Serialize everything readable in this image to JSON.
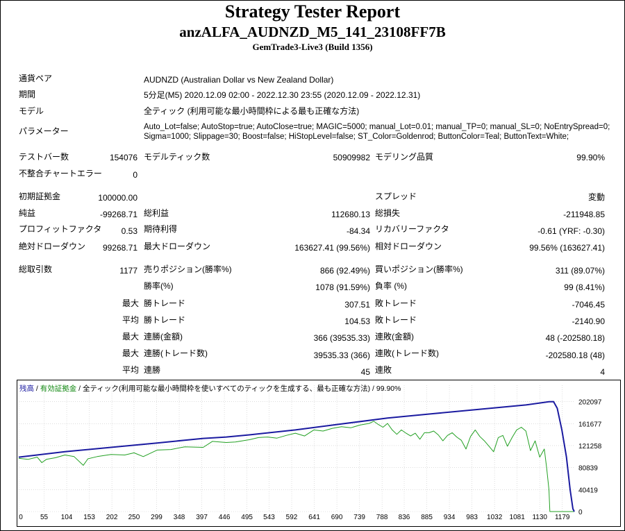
{
  "report": {
    "title": "Strategy Tester Report",
    "expert": "anzALFA_AUDNZD_M5_141_23108FF7B",
    "server": "GemTrade3-Live3 (Build 1356)"
  },
  "info": {
    "symbol_label": "通貨ペア",
    "symbol_value": "AUDNZD (Australian Dollar vs New Zealand Dollar)",
    "period_label": "期間",
    "period_value": "5分足(M5) 2020.12.09 02:00 - 2022.12.30 23:55 (2020.12.09 - 2022.12.31)",
    "model_label": "モデル",
    "model_value": "全ティック (利用可能な最小時間枠による最も正確な方法)",
    "params_label": "パラメーター",
    "params_line1": "Auto_Lot=false; AutoStop=true; AutoClose=true; MAGIC=5000; manual_Lot=0.01; manual_TP=0; manual_SL=0; NoEntrySpread=0;",
    "params_line2": "Sigma=1000; Slippage=30; Boost=false; HiStopLevel=false; ST_Color=Goldenrod; ButtonColor=Teal; ButtonText=White;"
  },
  "stats": {
    "bars_label": "テストバー数",
    "bars_value": "154076",
    "ticks_label": "モデルティック数",
    "ticks_value": "50909982",
    "quality_label": "モデリング品質",
    "quality_value": "99.90%",
    "mismatch_label": "不整合チャートエラー",
    "mismatch_value": "0",
    "deposit_label": "初期証拠金",
    "deposit_value": "100000.00",
    "spread_label": "スプレッド",
    "spread_value": "変動",
    "net_label": "純益",
    "net_value": "-99268.71",
    "gross_profit_label": "総利益",
    "gross_profit_value": "112680.13",
    "gross_loss_label": "総損失",
    "gross_loss_value": "-211948.85",
    "pf_label": "プロフィットファクタ",
    "pf_value": "0.53",
    "payoff_label": "期待利得",
    "payoff_value": "-84.34",
    "recovery_label": "リカバリーファクタ",
    "recovery_value": "-0.61 (YRF: -0.30)",
    "abs_dd_label": "絶対ドローダウン",
    "abs_dd_value": "99268.71",
    "max_dd_label": "最大ドローダウン",
    "max_dd_value": "163627.41 (99.56%)",
    "rel_dd_label": "相対ドローダウン",
    "rel_dd_value": "99.56% (163627.41)",
    "trades_label": "総取引数",
    "trades_value": "1177",
    "short_label": "売りポジション(勝率%)",
    "short_value": "866 (92.49%)",
    "long_label": "買いポジション(勝率%)",
    "long_value": "311 (89.07%)",
    "win_rate_label": "勝率(%)",
    "win_rate_value": "1078 (91.59%)",
    "loss_rate_label": "負率 (%)",
    "loss_rate_value": "99 (8.41%)",
    "max_prefix": "最大",
    "avg_prefix": "平均",
    "largest_win_label": "勝トレード",
    "largest_win_value": "307.51",
    "largest_loss_label": "敗トレード",
    "largest_loss_value": "-7046.45",
    "avg_win_label": "勝トレード",
    "avg_win_value": "104.53",
    "avg_loss_label": "敗トレード",
    "avg_loss_value": "-2140.90",
    "max_consec_wins_label": "連勝(金額)",
    "max_consec_wins_value": "366 (39535.33)",
    "max_consec_losses_label": "連敗(金額)",
    "max_consec_losses_value": "48 (-202580.18)",
    "max_consec_profit_label": "連勝(トレード数)",
    "max_consec_profit_value": "39535.33 (366)",
    "max_consec_loss_label": "連敗(トレード数)",
    "max_consec_loss_value": "-202580.18 (48)",
    "avg_consec_wins_label": "連勝",
    "avg_consec_wins_value": "45",
    "avg_consec_losses_label": "連敗",
    "avg_consec_losses_value": "4"
  },
  "chart_legend": {
    "balance": "残高",
    "sep1": " / ",
    "equity": "有効証拠金",
    "sep2": " / ",
    "rest": "全ティック(利用可能な最小時間枠を使いすべてのティックを生成する、最も正確な方法) / 99.90%"
  },
  "colors": {
    "balance": "#1a1aa0",
    "equity": "#22a022",
    "grid": "#c8c8c8"
  },
  "chart_data": {
    "type": "line",
    "x_ticks": [
      "0",
      "55",
      "104",
      "153",
      "202",
      "250",
      "299",
      "348",
      "397",
      "446",
      "495",
      "543",
      "592",
      "641",
      "690",
      "739",
      "788",
      "836",
      "885",
      "934",
      "983",
      "1032",
      "1081",
      "1130",
      "1179"
    ],
    "y_ticks": [
      "202097",
      "161677",
      "121258",
      "80839",
      "40419",
      "0"
    ],
    "ylim": [
      0,
      222000
    ],
    "xlim": [
      0,
      1205
    ],
    "series": [
      {
        "name": "残高",
        "points": [
          [
            0,
            100000
          ],
          [
            100,
            110000
          ],
          [
            200,
            118000
          ],
          [
            300,
            126000
          ],
          [
            400,
            134500
          ],
          [
            450,
            137000
          ],
          [
            500,
            141000
          ],
          [
            600,
            150000
          ],
          [
            700,
            161000
          ],
          [
            800,
            172000
          ],
          [
            900,
            180000
          ],
          [
            1000,
            188000
          ],
          [
            1100,
            196000
          ],
          [
            1150,
            202000
          ],
          [
            1160,
            202097
          ],
          [
            1168,
            190000
          ],
          [
            1178,
            150000
          ],
          [
            1188,
            100000
          ],
          [
            1196,
            40000
          ],
          [
            1202,
            5000
          ],
          [
            1205,
            0
          ]
        ]
      },
      {
        "name": "有効証拠金",
        "points": [
          [
            0,
            98000
          ],
          [
            20,
            96000
          ],
          [
            40,
            100000
          ],
          [
            50,
            90000
          ],
          [
            60,
            96000
          ],
          [
            80,
            99000
          ],
          [
            100,
            104000
          ],
          [
            120,
            101000
          ],
          [
            140,
            85000
          ],
          [
            150,
            97000
          ],
          [
            170,
            101000
          ],
          [
            200,
            105000
          ],
          [
            230,
            104000
          ],
          [
            250,
            108000
          ],
          [
            270,
            101000
          ],
          [
            300,
            113000
          ],
          [
            330,
            114000
          ],
          [
            360,
            119000
          ],
          [
            400,
            118000
          ],
          [
            420,
            129000
          ],
          [
            450,
            127000
          ],
          [
            470,
            128000
          ],
          [
            500,
            132000
          ],
          [
            520,
            136000
          ],
          [
            540,
            137000
          ],
          [
            560,
            135000
          ],
          [
            580,
            140000
          ],
          [
            600,
            144000
          ],
          [
            620,
            139000
          ],
          [
            640,
            150000
          ],
          [
            660,
            148000
          ],
          [
            680,
            153000
          ],
          [
            700,
            156000
          ],
          [
            720,
            154000
          ],
          [
            740,
            159000
          ],
          [
            760,
            162000
          ],
          [
            770,
            166000
          ],
          [
            780,
            160000
          ],
          [
            790,
            155000
          ],
          [
            800,
            162000
          ],
          [
            810,
            150000
          ],
          [
            820,
            142000
          ],
          [
            830,
            150000
          ],
          [
            840,
            144000
          ],
          [
            850,
            139000
          ],
          [
            860,
            144000
          ],
          [
            870,
            133000
          ],
          [
            880,
            145000
          ],
          [
            890,
            145000
          ],
          [
            900,
            148000
          ],
          [
            910,
            141000
          ],
          [
            920,
            130000
          ],
          [
            930,
            140000
          ],
          [
            940,
            145000
          ],
          [
            950,
            137000
          ],
          [
            960,
            131000
          ],
          [
            970,
            115000
          ],
          [
            980,
            138000
          ],
          [
            990,
            150000
          ],
          [
            1000,
            138000
          ],
          [
            1010,
            130000
          ],
          [
            1020,
            120000
          ],
          [
            1030,
            110000
          ],
          [
            1040,
            136000
          ],
          [
            1050,
            140000
          ],
          [
            1060,
            120000
          ],
          [
            1070,
            136000
          ],
          [
            1080,
            150000
          ],
          [
            1090,
            155000
          ],
          [
            1100,
            148000
          ],
          [
            1110,
            112000
          ],
          [
            1120,
            130000
          ],
          [
            1130,
            100000
          ],
          [
            1140,
            115000
          ],
          [
            1145,
            80000
          ],
          [
            1150,
            40000
          ],
          [
            1152,
            0
          ],
          [
            1205,
            0
          ]
        ]
      }
    ]
  }
}
